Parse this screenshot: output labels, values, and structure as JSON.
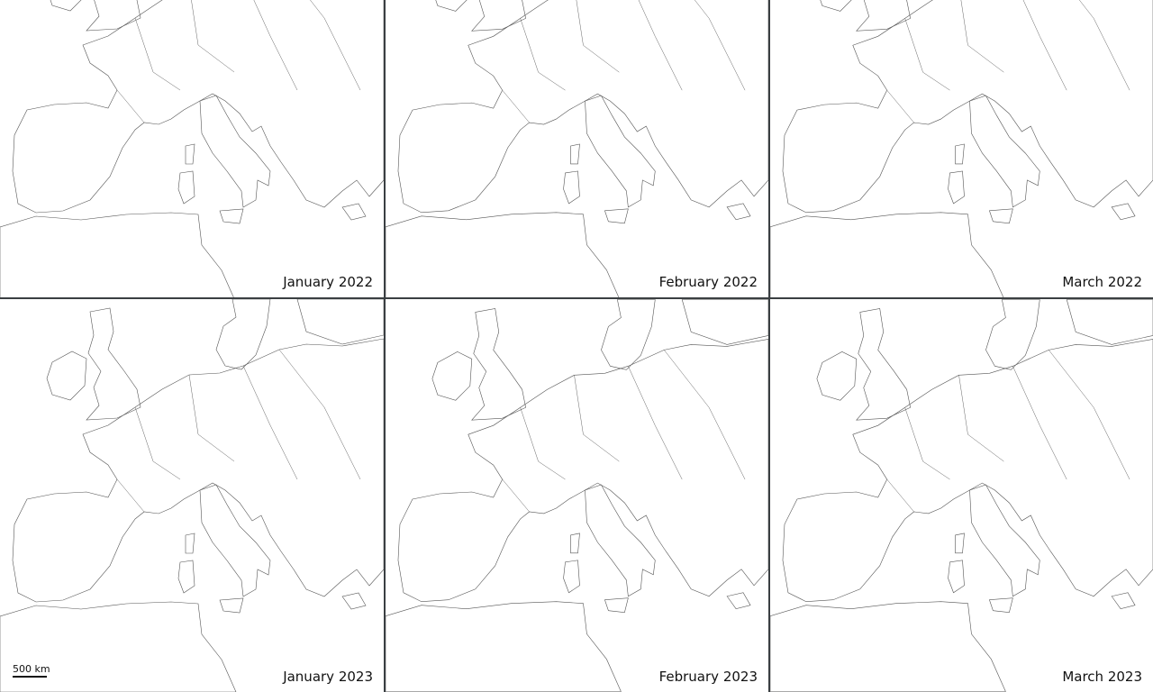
{
  "panels": [
    {
      "label": "January 2022"
    },
    {
      "label": "February 2022"
    },
    {
      "label": "March 2022"
    },
    {
      "label": "January 2023"
    },
    {
      "label": "February 2023"
    },
    {
      "label": "March 2023"
    }
  ],
  "scale_bar": {
    "label": "500 km"
  }
}
